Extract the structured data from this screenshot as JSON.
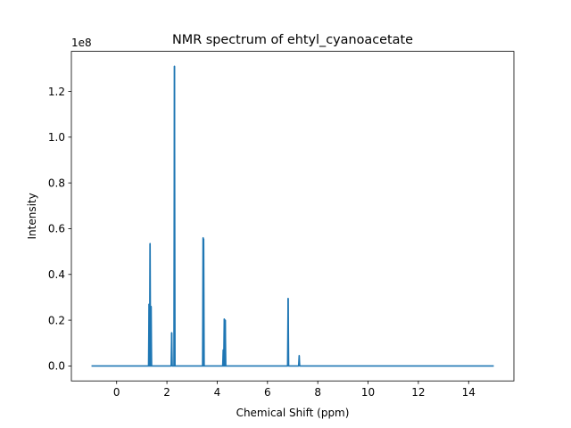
{
  "chart_data": {
    "type": "line",
    "title": "NMR spectrum of ehtyl_cyanoacetate",
    "xlabel": "Chemical Shift (ppm)",
    "ylabel": "Intensity",
    "y_offset_label": "1e8",
    "xlim": [
      -1.8,
      15.8
    ],
    "ylim": [
      -0.0655,
      1.375
    ],
    "y_scale_factor": 100000000,
    "x_ticks": [
      0,
      2,
      4,
      6,
      8,
      10,
      12,
      14
    ],
    "x_tick_labels": [
      "0",
      "2",
      "4",
      "6",
      "8",
      "10",
      "12",
      "14"
    ],
    "y_ticks": [
      0.0,
      0.2,
      0.4,
      0.6,
      0.8,
      1.0,
      1.2
    ],
    "y_tick_labels": [
      "0.0",
      "0.2",
      "0.4",
      "0.6",
      "0.8",
      "1.0",
      "1.2"
    ],
    "grid": false,
    "legend": false,
    "series": [
      {
        "color": "#1f77b4",
        "x_range": [
          -1.0,
          15.0
        ],
        "peaks": [
          {
            "x": 1.29,
            "y": 0.27
          },
          {
            "x": 1.33,
            "y": 0.535
          },
          {
            "x": 1.37,
            "y": 0.26
          },
          {
            "x": 2.19,
            "y": 0.145
          },
          {
            "x": 2.3,
            "y": 1.31
          },
          {
            "x": 3.44,
            "y": 0.56
          },
          {
            "x": 3.46,
            "y": 0.555
          },
          {
            "x": 4.24,
            "y": 0.07
          },
          {
            "x": 4.28,
            "y": 0.205
          },
          {
            "x": 4.32,
            "y": 0.2
          },
          {
            "x": 6.82,
            "y": 0.295
          },
          {
            "x": 7.26,
            "y": 0.045
          }
        ]
      }
    ]
  }
}
